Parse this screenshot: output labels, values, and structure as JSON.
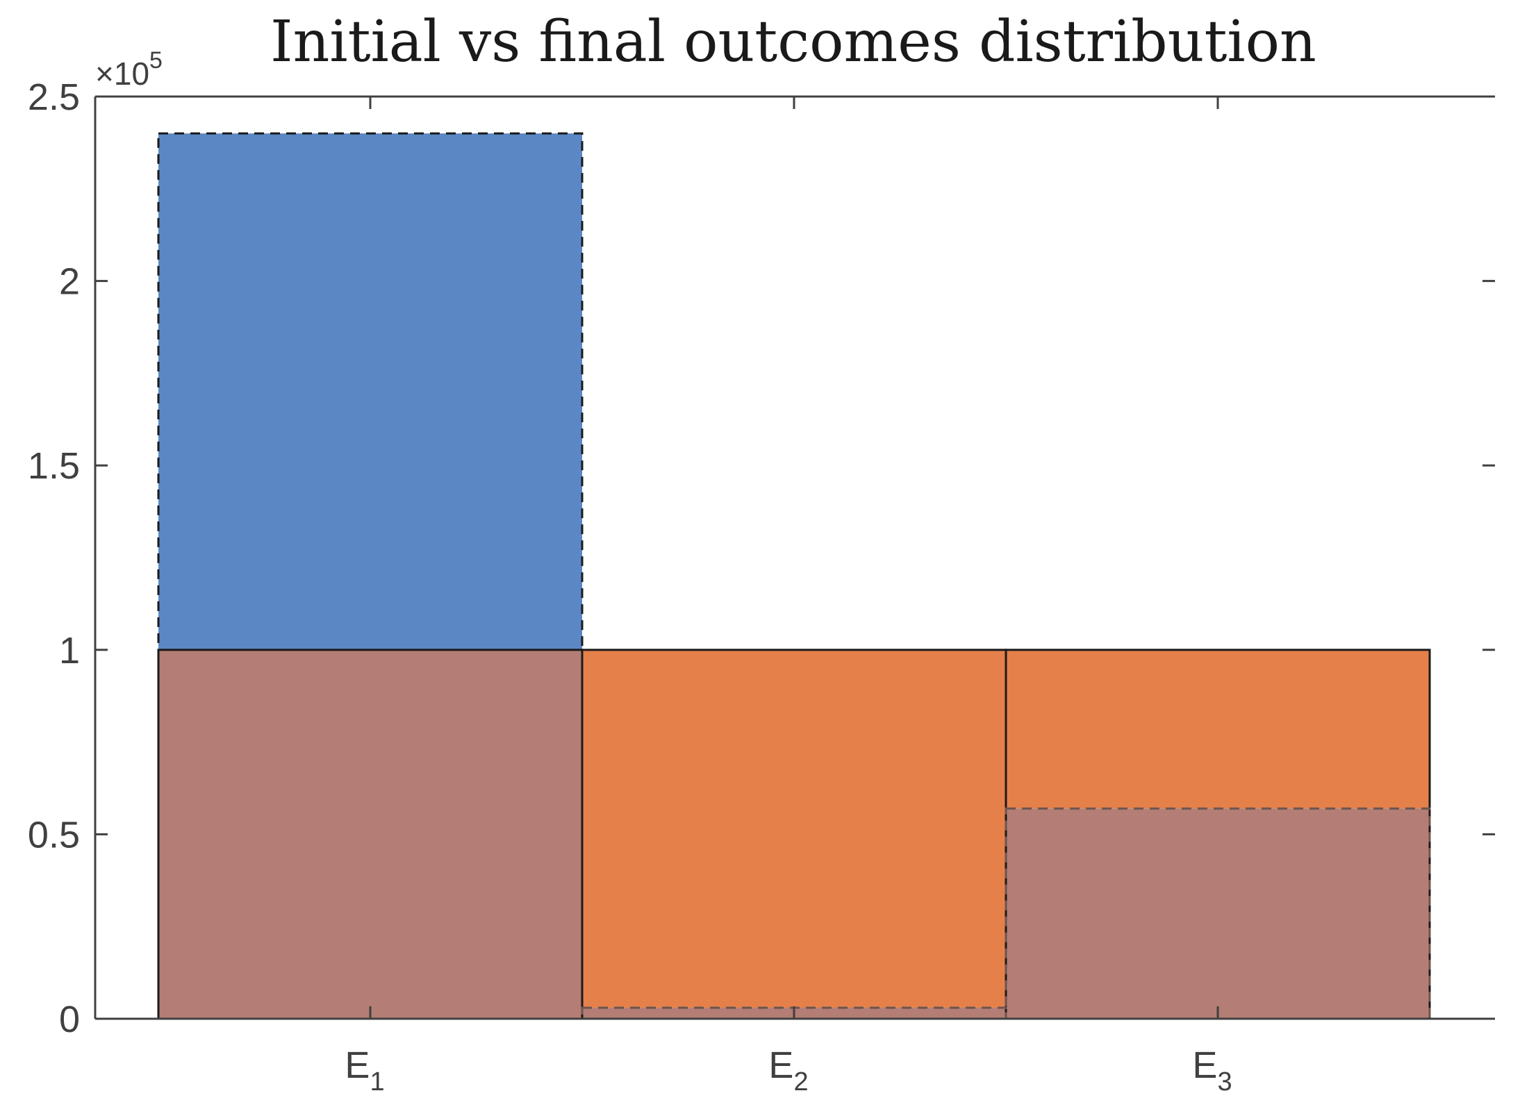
{
  "chart_data": {
    "type": "bar",
    "title": "Initial vs final outcomes distribution",
    "xlabel": "",
    "ylabel": "",
    "categories": [
      {
        "base": "E",
        "sub": "1"
      },
      {
        "base": "E",
        "sub": "2"
      },
      {
        "base": "E",
        "sub": "3"
      }
    ],
    "series": [
      {
        "values": [
          240000,
          3000,
          57000
        ],
        "color": "#5b88c5",
        "border": "dashed"
      },
      {
        "values": [
          100000,
          100000,
          100000
        ],
        "color": "#e6804a",
        "border": "solid"
      }
    ],
    "overlap_color": "#b47d75",
    "ylim": [
      0,
      250000
    ],
    "yticks": [
      0,
      50000,
      100000,
      150000,
      200000,
      250000
    ],
    "ytick_labels": [
      "0",
      "0.5",
      "1",
      "1.5",
      "2",
      "2.5"
    ],
    "y_exponent": {
      "base": "×10",
      "power": "5"
    },
    "grid": false,
    "legend": "none"
  }
}
